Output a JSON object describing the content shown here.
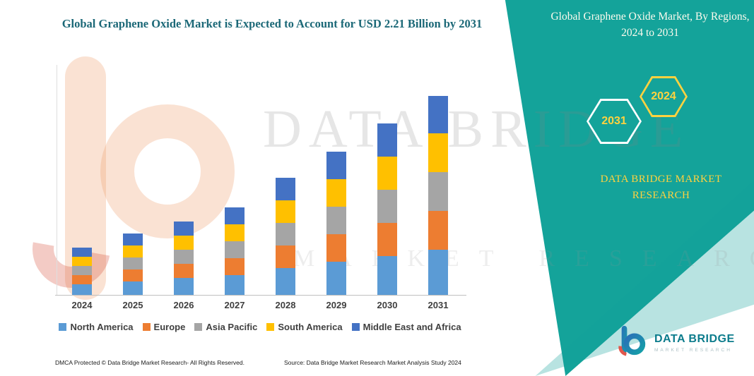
{
  "header": {
    "title": "Global Graphene Oxide Market is Expected to Account for USD 2.21 Billion by 2031"
  },
  "right_panel": {
    "heading": "Global Graphene Oxide Market, By Regions, 2024 to 2031",
    "hex_years": [
      "2031",
      "2024"
    ],
    "brand": "DATA BRIDGE MARKET RESEARCH"
  },
  "watermark": {
    "line1": "DATA BRIDGE",
    "line2": "MARKET RESEARCH"
  },
  "chart_data": {
    "type": "bar",
    "stacked": true,
    "title": "Global Graphene Oxide Market is Expected to Account for USD 2.21 Billion by 2031",
    "unit": "USD Billion",
    "categories": [
      "2024",
      "2025",
      "2026",
      "2027",
      "2028",
      "2029",
      "2030",
      "2031"
    ],
    "series": [
      {
        "name": "North America",
        "color": "#5b9bd5",
        "values": [
          0.12,
          0.15,
          0.19,
          0.22,
          0.3,
          0.37,
          0.43,
          0.5
        ]
      },
      {
        "name": "Europe",
        "color": "#ed7d31",
        "values": [
          0.1,
          0.13,
          0.16,
          0.19,
          0.25,
          0.31,
          0.37,
          0.43
        ]
      },
      {
        "name": "Asia Pacific",
        "color": "#a5a5a5",
        "values": [
          0.1,
          0.13,
          0.16,
          0.19,
          0.25,
          0.31,
          0.37,
          0.43
        ]
      },
      {
        "name": "South America",
        "color": "#ffc000",
        "values": [
          0.1,
          0.13,
          0.16,
          0.19,
          0.25,
          0.31,
          0.37,
          0.43
        ]
      },
      {
        "name": "Middle East and Africa",
        "color": "#4472c4",
        "values": [
          0.1,
          0.13,
          0.16,
          0.19,
          0.25,
          0.31,
          0.37,
          0.42
        ]
      }
    ],
    "totals": [
      0.52,
      0.67,
      0.83,
      0.98,
      1.3,
      1.61,
      1.91,
      2.21
    ],
    "legend_position": "bottom",
    "grid": false,
    "value_axis_visible": false
  },
  "footer": {
    "dmca": "DMCA Protected © Data Bridge Market Research-  All Rights Reserved.",
    "source": "Source: Data Bridge Market Research  Market Analysis Study 2024"
  },
  "logo": {
    "brand": "DATA BRIDGE",
    "subtitle": "MARKET RESEARCH"
  },
  "colors": {
    "ribbon_teal": "#14a39a",
    "accent_yellow": "#ffd23f",
    "title_teal": "#1b6877",
    "logo_teal": "#0c7c8c"
  }
}
